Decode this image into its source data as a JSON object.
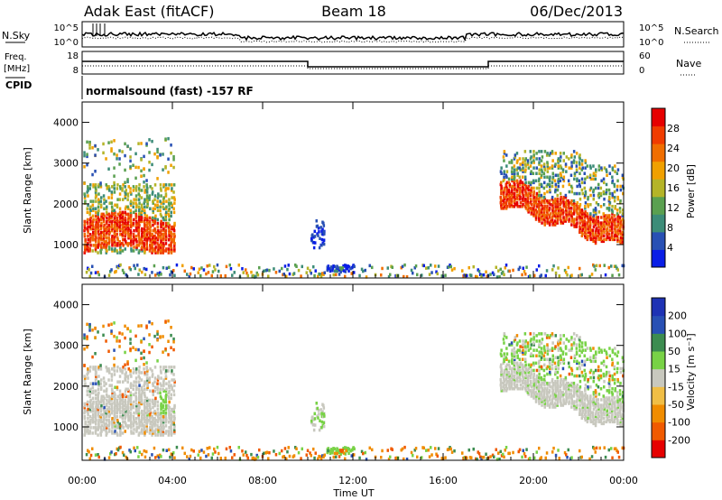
{
  "header": {
    "station": "Adak East (fitACF)",
    "beam": "Beam 18",
    "date": "06/Dec/2013"
  },
  "noise_panel": {
    "left_label": "N.Sky",
    "right_label": "N.Search",
    "left_ticks": [
      "10^5",
      "10^0"
    ],
    "right_ticks": [
      "10^5",
      "10^0"
    ]
  },
  "freq_panel": {
    "left_label_line1": "Freq.",
    "left_label_line2": "[MHz]",
    "left_ticks": [
      "18",
      "8"
    ],
    "right_label": "Nave",
    "right_ticks": [
      "60",
      "0"
    ]
  },
  "cpid_panel": {
    "label": "CPID",
    "text": "normalsound (fast) -157 RF"
  },
  "colors": {
    "power": [
      "#0a1ee6",
      "#2850b4",
      "#3c8c78",
      "#5aa050",
      "#b4b428",
      "#f0a000",
      "#f06e00",
      "#f03c00",
      "#e60000"
    ],
    "velocity": [
      "#e60000",
      "#f05a00",
      "#f08c00",
      "#f0be46",
      "#c8c8be",
      "#78d246",
      "#3c8c50",
      "#2850b4",
      "#1e32b4"
    ],
    "groundscatter": "#c8c8be"
  },
  "chart_data": [
    {
      "type": "heatmap",
      "name": "power",
      "ylabel": "Slant Range [km]",
      "yticks": [
        "1000",
        "2000",
        "3000",
        "4000"
      ],
      "ylim": [
        180,
        4500
      ],
      "colorbar_label": "Power [dB]",
      "colorbar_ticks": [
        "4",
        "8",
        "12",
        "16",
        "20",
        "24",
        "28"
      ],
      "colorbar_range": [
        0,
        32
      ]
    },
    {
      "type": "heatmap",
      "name": "velocity",
      "ylabel": "Slant Range [km]",
      "yticks": [
        "1000",
        "2000",
        "3000",
        "4000"
      ],
      "ylim": [
        180,
        4500
      ],
      "xlabel": "Time UT",
      "xticks": [
        "00:00",
        "04:00",
        "08:00",
        "12:00",
        "16:00",
        "20:00",
        "00:00"
      ],
      "xlim_hours": [
        0,
        24
      ],
      "colorbar_label": "Velocity [m s⁻¹]",
      "colorbar_ticks": [
        "200",
        "100",
        "50",
        "15",
        "-15",
        "-50",
        "-100",
        "-200"
      ]
    }
  ]
}
